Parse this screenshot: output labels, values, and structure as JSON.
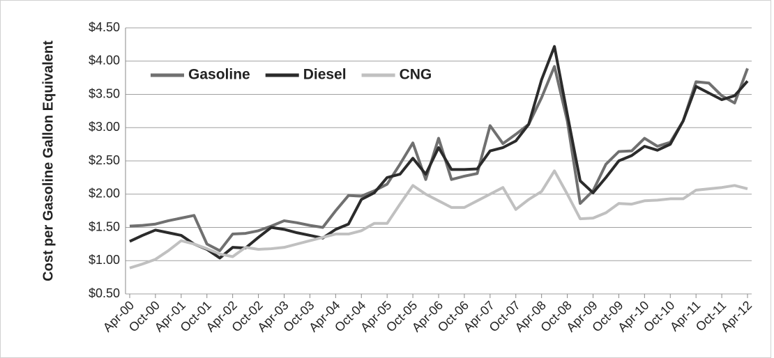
{
  "chart_data": {
    "type": "line",
    "y_label": "Cost per Gasoline Gallon Equivalent",
    "categories": [
      "Apr-00",
      null,
      "Oct-00",
      null,
      "Apr-01",
      null,
      "Oct-01",
      null,
      "Apr-02",
      null,
      "Oct-02",
      null,
      "Apr-03",
      null,
      "Oct-03",
      null,
      "Apr-04",
      null,
      "Oct-04",
      null,
      "Apr-05",
      null,
      "Oct-05",
      null,
      "Apr-06",
      null,
      "Oct-06",
      null,
      "Apr-07",
      null,
      "Oct-07",
      null,
      "Apr-08",
      null,
      "Oct-08",
      null,
      "Apr-09",
      null,
      "Oct-09",
      null,
      "Apr-10",
      null,
      "Oct-10",
      null,
      "Apr-11",
      null,
      "Oct-11",
      null,
      "Apr-12"
    ],
    "series": [
      {
        "name": "Gasoline",
        "color": "#707070",
        "values": [
          1.52,
          1.53,
          1.55,
          1.6,
          1.64,
          1.68,
          1.25,
          1.15,
          1.4,
          1.41,
          1.45,
          1.52,
          1.6,
          1.57,
          1.53,
          1.5,
          1.75,
          1.98,
          1.97,
          2.05,
          2.15,
          2.45,
          2.77,
          2.22,
          2.84,
          2.22,
          2.27,
          2.31,
          3.03,
          2.76,
          2.9,
          3.05,
          3.45,
          3.92,
          3.1,
          1.86,
          2.05,
          2.45,
          2.64,
          2.65,
          2.84,
          2.72,
          2.78,
          3.1,
          3.69,
          3.67,
          3.48,
          3.37,
          3.89
        ]
      },
      {
        "name": "Diesel",
        "color": "#2b2b2b",
        "values": [
          1.29,
          1.38,
          1.46,
          1.42,
          1.38,
          1.25,
          1.17,
          1.04,
          1.2,
          1.19,
          1.35,
          1.5,
          1.47,
          1.42,
          1.38,
          1.34,
          1.47,
          1.55,
          1.92,
          2.02,
          2.25,
          2.3,
          2.54,
          2.3,
          2.7,
          2.37,
          2.37,
          2.38,
          2.65,
          2.7,
          2.8,
          3.05,
          3.72,
          4.22,
          3.2,
          2.2,
          2.02,
          2.25,
          2.5,
          2.58,
          2.72,
          2.66,
          2.75,
          3.1,
          3.62,
          3.52,
          3.42,
          3.48,
          3.7
        ]
      },
      {
        "name": "CNG",
        "color": "#c0c0c0",
        "values": [
          0.89,
          0.95,
          1.02,
          1.15,
          1.3,
          1.25,
          1.18,
          1.1,
          1.06,
          1.2,
          1.17,
          1.18,
          1.2,
          1.25,
          1.3,
          1.35,
          1.4,
          1.4,
          1.45,
          1.56,
          1.56,
          1.85,
          2.13,
          2.0,
          1.9,
          1.8,
          1.8,
          1.9,
          2.0,
          2.1,
          1.77,
          1.92,
          2.04,
          2.35,
          2.0,
          1.63,
          1.64,
          1.72,
          1.86,
          1.85,
          1.9,
          1.91,
          1.93,
          1.93,
          2.06,
          2.08,
          2.1,
          2.13,
          2.08
        ]
      }
    ],
    "ylim": [
      0.5,
      4.5
    ],
    "yticks": [
      {
        "value": 0.5,
        "label": "$0.50"
      },
      {
        "value": 1.0,
        "label": "$1.00"
      },
      {
        "value": 1.5,
        "label": "$1.50"
      },
      {
        "value": 2.0,
        "label": "$2.00"
      },
      {
        "value": 2.5,
        "label": "$2.50"
      },
      {
        "value": 3.0,
        "label": "$3.00"
      },
      {
        "value": 3.5,
        "label": "$3.50"
      },
      {
        "value": 4.0,
        "label": "$4.00"
      },
      {
        "value": 4.5,
        "label": "$4.50"
      }
    ],
    "grid": true,
    "legend": "top-left"
  }
}
